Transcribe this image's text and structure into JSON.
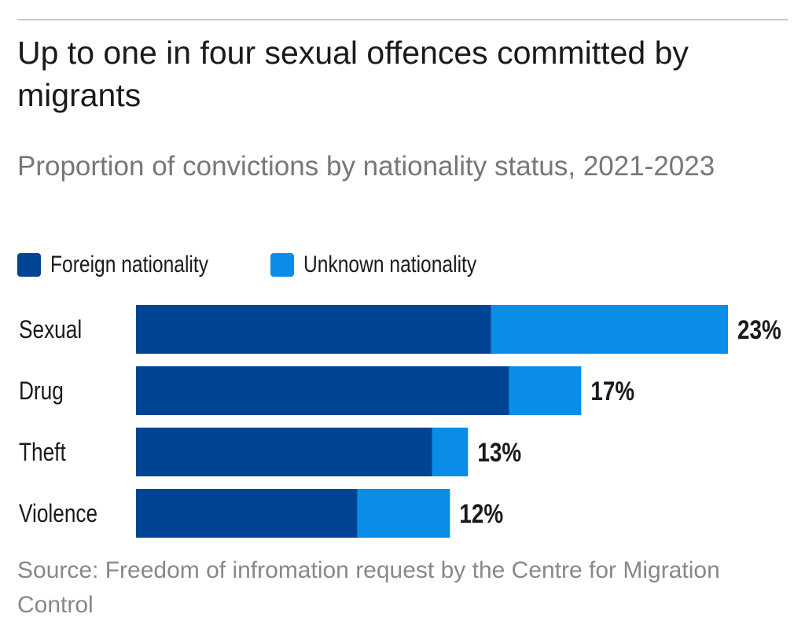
{
  "chart_data": {
    "type": "bar",
    "orientation": "horizontal",
    "stacked": true,
    "title": "Up to one in four sexual offences committed by migrants",
    "subtitle": "Proportion of convictions by nationality status, 2021-2023",
    "categories": [
      "Sexual",
      "Drug",
      "Theft",
      "Violence"
    ],
    "series": [
      {
        "name": "Foreign nationality",
        "color": "#004494",
        "values": [
          13.8,
          14.5,
          11.5,
          8.6
        ]
      },
      {
        "name": "Unknown nationality",
        "color": "#0a8de6",
        "values": [
          9.2,
          2.8,
          1.4,
          3.6
        ]
      }
    ],
    "totals_labels": [
      "23%",
      "17%",
      "13%",
      "12%"
    ],
    "totals": [
      23,
      17.3,
      12.9,
      12.2
    ],
    "xlim": [
      0,
      23
    ],
    "grid": false,
    "legend_position": "top-left",
    "source": "Source: Freedom of infromation request by the Centre for Migration Control"
  }
}
